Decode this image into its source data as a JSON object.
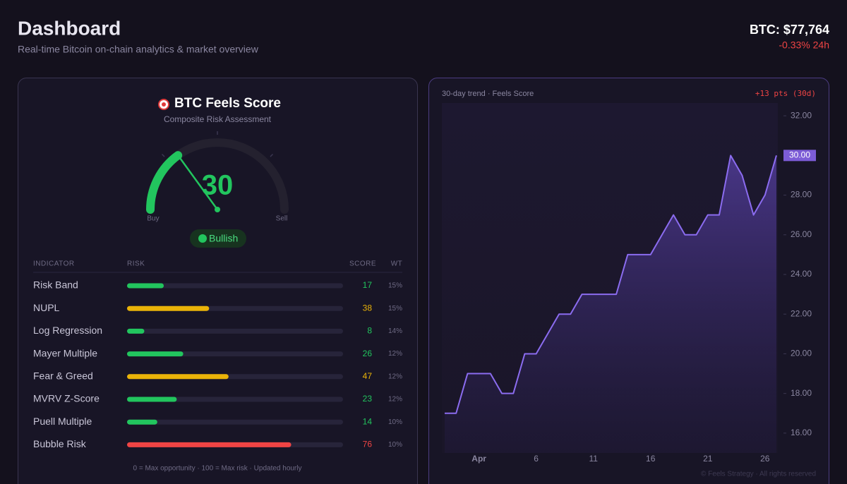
{
  "header": {
    "title": "Dashboard",
    "subtitle": "Real-time Bitcoin on-chain analytics & market overview",
    "price": "BTC: $77,764",
    "change": "-0.33% 24h"
  },
  "score_card": {
    "title": "BTC Feels Score",
    "subtitle": "Composite Risk Assessment",
    "score": 30,
    "gauge_range": [
      0,
      100
    ],
    "score_color": "#22c55e",
    "min_label": "Buy",
    "max_label": "Sell",
    "status": "Bullish",
    "columns": [
      "INDICATOR",
      "RISK",
      "SCORE",
      "WT"
    ],
    "indicators": [
      {
        "name": "Risk Band",
        "score": 17,
        "weight": "15%",
        "color": "#22c55e"
      },
      {
        "name": "NUPL",
        "score": 38,
        "weight": "15%",
        "color": "#eab308"
      },
      {
        "name": "Log Regression",
        "score": 8,
        "weight": "14%",
        "color": "#22c55e"
      },
      {
        "name": "Mayer Multiple",
        "score": 26,
        "weight": "12%",
        "color": "#22c55e"
      },
      {
        "name": "Fear & Greed",
        "score": 47,
        "weight": "12%",
        "color": "#eab308"
      },
      {
        "name": "MVRV Z-Score",
        "score": 23,
        "weight": "12%",
        "color": "#22c55e"
      },
      {
        "name": "Puell Multiple",
        "score": 14,
        "weight": "10%",
        "color": "#22c55e"
      },
      {
        "name": "Bubble Risk",
        "score": 76,
        "weight": "10%",
        "color": "#ef4444"
      }
    ],
    "footnote": "0 = Max opportunity · 100 = Max risk · Updated hourly"
  },
  "chart_data": {
    "type": "line",
    "title": "30-day trend · Feels Score",
    "annotation": "+13 pts (30d)",
    "categories": [
      null,
      null,
      null,
      "Apr",
      null,
      null,
      null,
      null,
      "6",
      null,
      null,
      null,
      null,
      "11",
      null,
      null,
      null,
      null,
      "16",
      null,
      null,
      null,
      null,
      "21",
      null,
      null,
      null,
      null,
      "26",
      null
    ],
    "values": [
      17,
      17,
      19,
      19,
      19,
      18,
      18,
      20,
      20,
      21,
      22,
      22,
      23,
      23,
      23,
      23,
      25,
      25,
      25,
      26,
      27,
      26,
      26,
      27,
      27,
      30,
      29,
      27,
      28,
      30
    ],
    "value_labels": [
      null,
      null,
      null,
      null,
      null,
      null,
      null,
      null,
      null,
      null,
      null,
      null,
      null,
      null,
      null,
      null,
      null,
      null,
      null,
      null,
      null,
      null,
      null,
      null,
      null,
      null,
      null,
      null,
      null,
      "30.00"
    ],
    "color": "#8b6cf0",
    "ylim": [
      15,
      33
    ],
    "yticks": [
      {
        "value": 16,
        "label": "16.00"
      },
      {
        "value": 18,
        "label": "18.00"
      },
      {
        "value": 20,
        "label": "20.00"
      },
      {
        "value": 22,
        "label": "22.00"
      },
      {
        "value": 24,
        "label": "24.00"
      },
      {
        "value": 26,
        "label": "26.00"
      },
      {
        "value": 28,
        "label": "28.00"
      },
      {
        "value": 30,
        "label": "30.00"
      },
      {
        "value": 32,
        "label": "32.00"
      }
    ],
    "footer": "© Feels Strategy · All rights reserved"
  }
}
